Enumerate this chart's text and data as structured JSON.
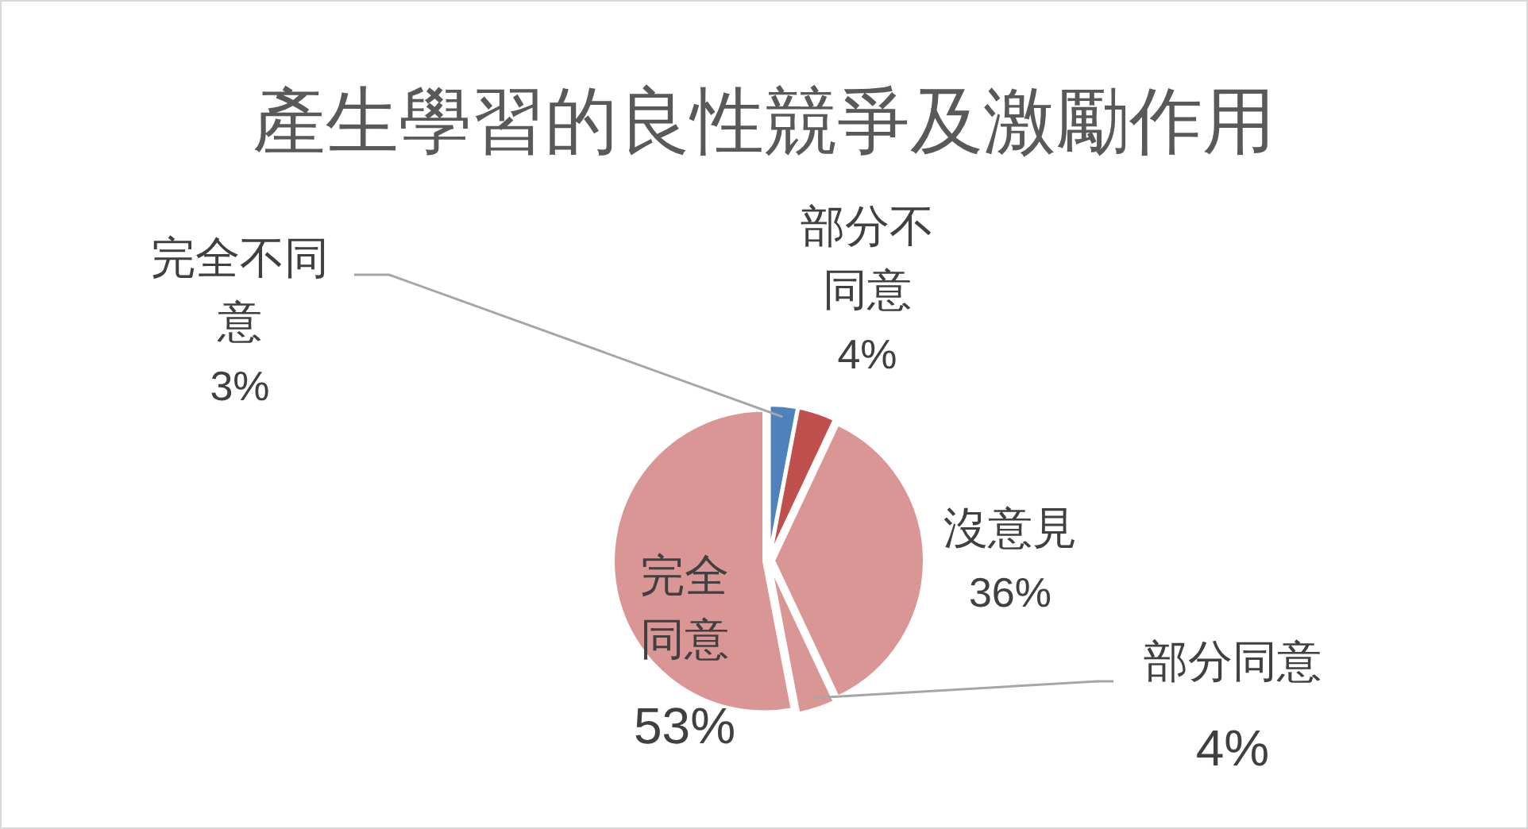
{
  "chart_data": {
    "type": "pie",
    "title": "產生學習的良性競爭及激勵作用",
    "categories": [
      "完全不同意",
      "部分不同意",
      "沒意見",
      "部分同意",
      "完全同意"
    ],
    "values": [
      3,
      4,
      36,
      4,
      53
    ],
    "colors": [
      "#4f81bd",
      "#c0504d",
      "#d99694",
      "#d99694",
      "#d99694"
    ],
    "value_labels": [
      "3%",
      "4%",
      "36%",
      "4%",
      "53%"
    ]
  }
}
